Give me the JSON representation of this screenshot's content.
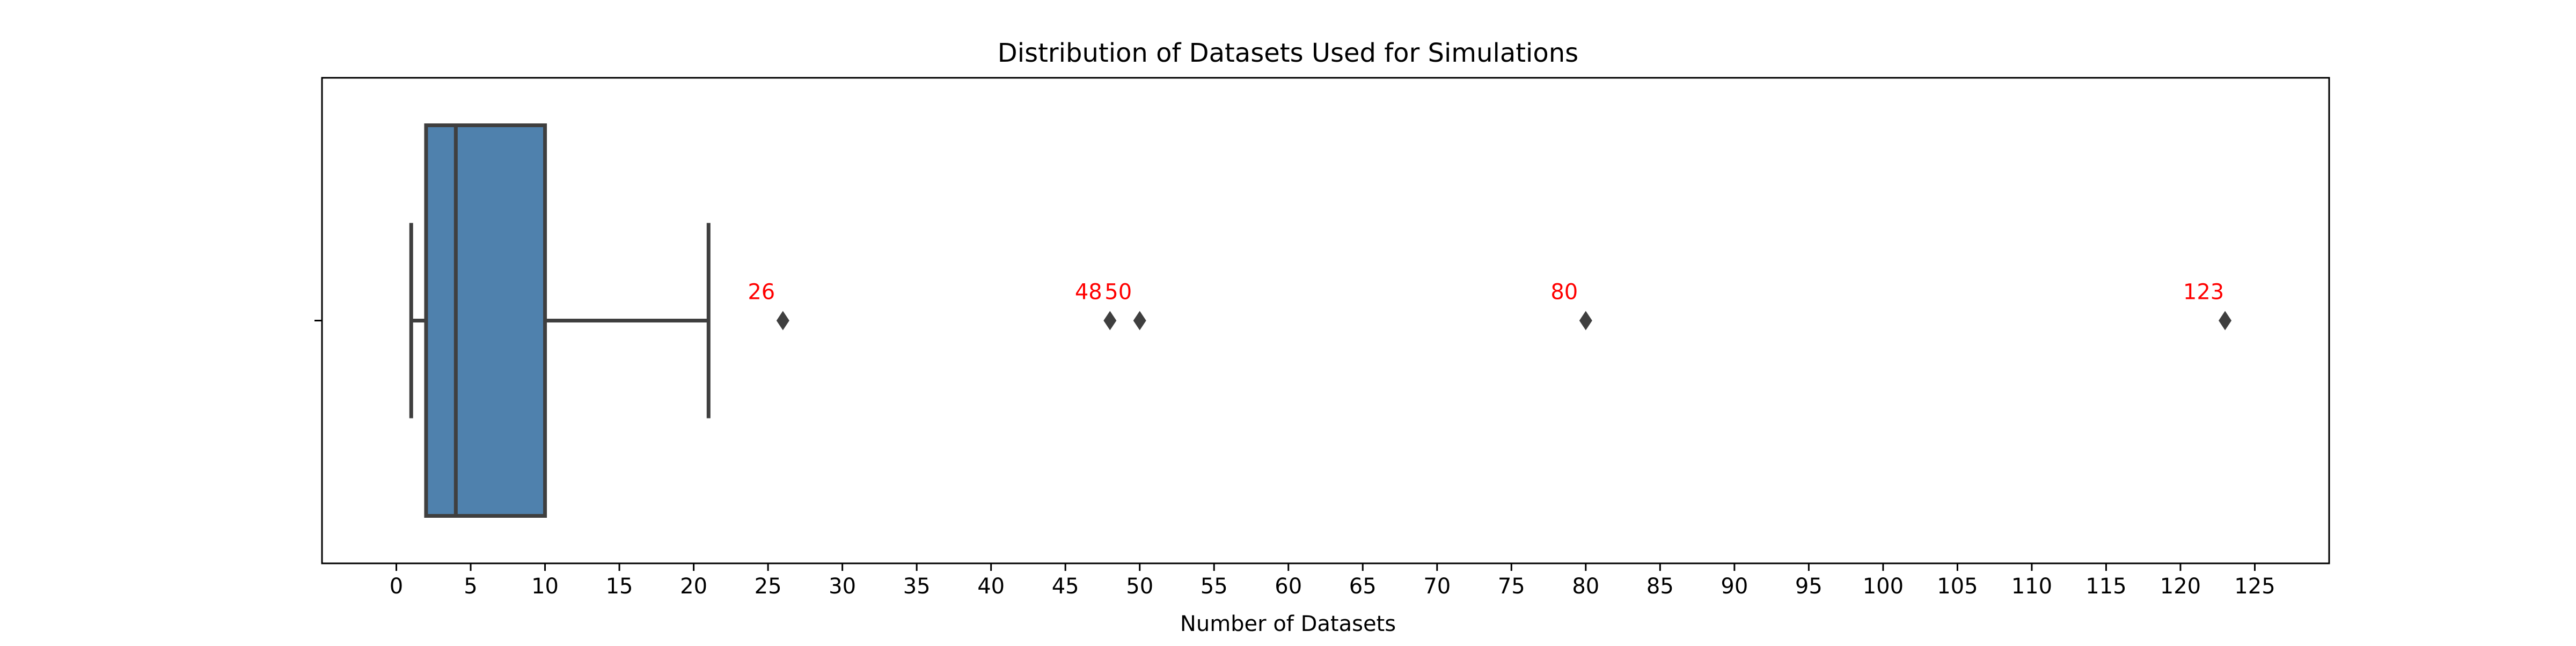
{
  "chart_data": {
    "type": "box",
    "title": "Distribution of Datasets Used for Simulations",
    "xlabel": "Number of Datasets",
    "ylabel": "",
    "xlim": [
      -5,
      130
    ],
    "x_ticks": [
      0,
      5,
      10,
      15,
      20,
      25,
      30,
      35,
      40,
      45,
      50,
      55,
      60,
      65,
      70,
      75,
      80,
      85,
      90,
      95,
      100,
      105,
      110,
      115,
      120,
      125
    ],
    "orientation": "horizontal",
    "grid": false,
    "box": {
      "whisker_low": 1,
      "q1": 2,
      "median": 4,
      "q3": 10,
      "whisker_high": 21
    },
    "outliers": [
      26,
      48,
      50,
      80,
      123
    ],
    "outlier_labels": [
      "26",
      "48",
      "50",
      "80",
      "123"
    ],
    "colors": {
      "box_fill": "#4f81ad",
      "box_edge": "#3f3f3f",
      "outlier_label": "#ff0000",
      "axis": "#000000"
    }
  }
}
